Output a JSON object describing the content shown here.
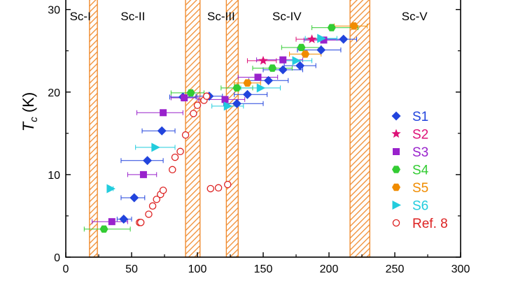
{
  "chart_data": {
    "type": "scatter",
    "xlabel": "",
    "ylabel": "T_c (K)",
    "ylabel_main": "T",
    "ylabel_sub": "c",
    "ylabel_unit": " (K)",
    "xlim": [
      0,
      300
    ],
    "ylim": [
      0,
      32
    ],
    "x_ticks": [
      0,
      50,
      100,
      150,
      200,
      250,
      300
    ],
    "y_ticks": [
      0,
      10,
      20,
      30
    ],
    "regions": [
      {
        "label": "Sc-I",
        "label_x": 11
      },
      {
        "label": "Sc-II",
        "label_x": 51
      },
      {
        "label": "Sc-III",
        "label_x": 118
      },
      {
        "label": "Sc-IV",
        "label_x": 168
      },
      {
        "label": "Sc-V",
        "label_x": 265
      }
    ],
    "region_label_y": 29.2,
    "hatched_bands": [
      [
        18,
        24
      ],
      [
        91,
        102
      ],
      [
        122,
        131
      ],
      [
        216,
        231
      ]
    ],
    "series": [
      {
        "name": "S1",
        "marker": "diamond",
        "color": "#2244dd",
        "points": [
          {
            "x": 44,
            "y": 4.6,
            "xerr": [
              5,
              6
            ]
          },
          {
            "x": 52,
            "y": 7.2,
            "xerr": [
              10,
              8
            ]
          },
          {
            "x": 62,
            "y": 11.7,
            "xerr": [
              20,
              12
            ]
          },
          {
            "x": 73,
            "y": 15.3,
            "xerr": [
              15,
              10
            ]
          },
          {
            "x": 89,
            "y": 19.4,
            "xerr": [
              10,
              10
            ]
          },
          {
            "x": 109,
            "y": 19.5,
            "xerr": [
              10,
              10
            ]
          },
          {
            "x": 130,
            "y": 18.6,
            "xerr": [
              10,
              20
            ]
          },
          {
            "x": 138,
            "y": 19.7,
            "xerr": [
              10,
              15
            ]
          },
          {
            "x": 154,
            "y": 21.4,
            "xerr": [
              15,
              15
            ]
          },
          {
            "x": 165,
            "y": 22.7,
            "xerr": [
              15,
              15
            ]
          },
          {
            "x": 178,
            "y": 23.2,
            "xerr": [
              12,
              12
            ]
          },
          {
            "x": 194,
            "y": 25.1,
            "xerr": [
              18,
              15
            ]
          },
          {
            "x": 211,
            "y": 26.4,
            "xerr": [
              16,
              10
            ]
          }
        ]
      },
      {
        "name": "S2",
        "marker": "star",
        "color": "#dd1177",
        "points": [
          {
            "x": 150,
            "y": 23.8,
            "xerr": [
              12,
              10
            ]
          },
          {
            "x": 187,
            "y": 26.4,
            "xerr": [
              12,
              10
            ]
          }
        ]
      },
      {
        "name": "S3",
        "marker": "square",
        "color": "#9922cc",
        "points": [
          {
            "x": 35,
            "y": 4.3,
            "xerr": [
              15,
              12
            ]
          },
          {
            "x": 59,
            "y": 10.0,
            "xerr": [
              12,
              10
            ]
          },
          {
            "x": 74,
            "y": 17.5,
            "xerr": [
              20,
              15
            ]
          },
          {
            "x": 90,
            "y": 19.3,
            "xerr": [
              10,
              10
            ]
          },
          {
            "x": 121,
            "y": 19.1,
            "xerr": [
              20,
              15
            ]
          },
          {
            "x": 146,
            "y": 21.8,
            "xerr": [
              15,
              15
            ]
          },
          {
            "x": 165,
            "y": 23.9,
            "xerr": [
              20,
              15
            ]
          },
          {
            "x": 196,
            "y": 26.3,
            "xerr": [
              15,
              15
            ]
          }
        ]
      },
      {
        "name": "S4",
        "marker": "hexagon",
        "color": "#33cc33",
        "points": [
          {
            "x": 29,
            "y": 3.4,
            "xerr": [
              15,
              20
            ]
          },
          {
            "x": 95,
            "y": 19.9,
            "xerr": [
              15,
              10
            ]
          },
          {
            "x": 130,
            "y": 20.5,
            "xerr": [
              12,
              12
            ]
          },
          {
            "x": 157,
            "y": 22.9,
            "xerr": [
              15,
              15
            ]
          },
          {
            "x": 179,
            "y": 25.4,
            "xerr": [
              15,
              15
            ]
          },
          {
            "x": 202,
            "y": 27.8,
            "xerr": [
              15,
              20
            ]
          }
        ]
      },
      {
        "name": "S5",
        "marker": "hexagon",
        "color": "#f08c00",
        "points": [
          {
            "x": 138,
            "y": 21.1,
            "xerr": [
              10,
              10
            ]
          },
          {
            "x": 182,
            "y": 24.6,
            "xerr": [
              12,
              12
            ]
          },
          {
            "x": 219,
            "y": 28.0,
            "xerr": [
              15,
              10
            ]
          }
        ]
      },
      {
        "name": "S6",
        "marker": "triangle-right",
        "color": "#22ccdd",
        "points": [
          {
            "x": 34,
            "y": 8.3,
            "xerr": [
              2,
              2
            ]
          },
          {
            "x": 68,
            "y": 13.3,
            "xerr": [
              15,
              15
            ]
          },
          {
            "x": 123,
            "y": 18.3,
            "xerr": [
              12,
              12
            ]
          },
          {
            "x": 148,
            "y": 20.5,
            "xerr": [
              15,
              15
            ]
          },
          {
            "x": 175,
            "y": 23.8,
            "xerr": [
              12,
              12
            ]
          },
          {
            "x": 194,
            "y": 26.5,
            "xerr": [
              12,
              12
            ]
          }
        ]
      },
      {
        "name": "Ref. 8",
        "marker": "open-circle",
        "color": "#dd2222",
        "points": [
          {
            "x": 56,
            "y": 4.2
          },
          {
            "x": 57,
            "y": 4.2
          },
          {
            "x": 63,
            "y": 5.2
          },
          {
            "x": 66,
            "y": 6.2
          },
          {
            "x": 69,
            "y": 7.0
          },
          {
            "x": 72,
            "y": 7.6
          },
          {
            "x": 74,
            "y": 8.1
          },
          {
            "x": 81,
            "y": 10.6
          },
          {
            "x": 83,
            "y": 12.1
          },
          {
            "x": 87,
            "y": 12.8
          },
          {
            "x": 91,
            "y": 14.8
          },
          {
            "x": 97,
            "y": 17.4
          },
          {
            "x": 100,
            "y": 18.4
          },
          {
            "x": 105,
            "y": 19.0
          },
          {
            "x": 107,
            "y": 19.5
          },
          {
            "x": 110,
            "y": 8.3
          },
          {
            "x": 116,
            "y": 8.4
          },
          {
            "x": 123,
            "y": 8.8
          }
        ]
      }
    ],
    "legend": {
      "placement": "right"
    }
  }
}
